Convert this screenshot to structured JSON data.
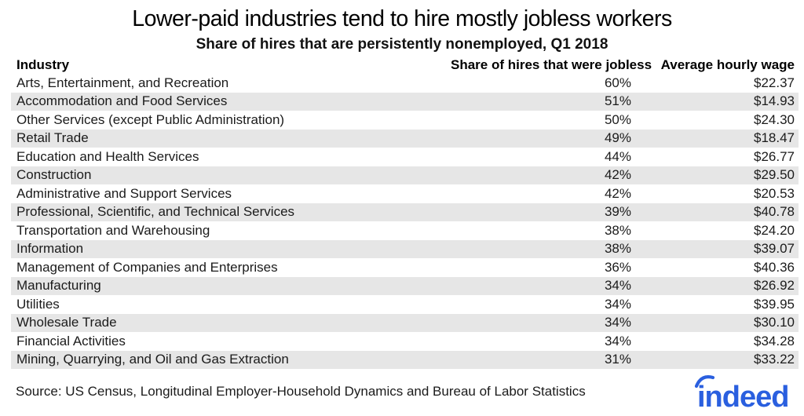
{
  "title": "Lower-paid industries tend to hire mostly jobless workers",
  "subtitle": "Share of hires that are persistently nonemployed, Q1 2018",
  "table": {
    "columns": [
      "Industry",
      "Share of hires that were jobless",
      "Average hourly wage"
    ],
    "rows": [
      {
        "industry": "Arts, Entertainment, and Recreation",
        "share": "60%",
        "wage": "$22.37"
      },
      {
        "industry": "Accommodation and Food Services",
        "share": "51%",
        "wage": "$14.93"
      },
      {
        "industry": "Other Services (except Public Administration)",
        "share": "50%",
        "wage": "$24.30"
      },
      {
        "industry": "Retail Trade",
        "share": "49%",
        "wage": "$18.47"
      },
      {
        "industry": "Education and Health Services",
        "share": "44%",
        "wage": "$26.77"
      },
      {
        "industry": "Construction",
        "share": "42%",
        "wage": "$29.50"
      },
      {
        "industry": "Administrative and Support Services",
        "share": "42%",
        "wage": "$20.53"
      },
      {
        "industry": "Professional, Scientific, and Technical Services",
        "share": "39%",
        "wage": "$40.78"
      },
      {
        "industry": "Transportation and Warehousing",
        "share": "38%",
        "wage": "$24.20"
      },
      {
        "industry": "Information",
        "share": "38%",
        "wage": "$39.07"
      },
      {
        "industry": "Management of Companies and Enterprises",
        "share": "36%",
        "wage": "$40.36"
      },
      {
        "industry": "Manufacturing",
        "share": "34%",
        "wage": "$26.92"
      },
      {
        "industry": "Utilities",
        "share": "34%",
        "wage": "$39.95"
      },
      {
        "industry": "Wholesale Trade",
        "share": "34%",
        "wage": "$30.10"
      },
      {
        "industry": "Financial Activities",
        "share": "34%",
        "wage": "$34.28"
      },
      {
        "industry": "Mining, Quarrying, and Oil and Gas Extraction",
        "share": "31%",
        "wage": "$33.22"
      }
    ]
  },
  "source": "Source: US Census, Longitudinal Employer-Household Dynamics and Bureau of Labor Statistics",
  "branding": {
    "logo_text": "indeed"
  },
  "colors": {
    "row_stripe": "#e6e6e6",
    "brand_blue": "#2a5fdf",
    "text": "#1b1b1b"
  },
  "chart_data": {
    "type": "table",
    "title": "Lower-paid industries tend to hire mostly jobless workers",
    "subtitle": "Share of hires that are persistently nonemployed, Q1 2018",
    "columns": [
      "Industry",
      "Share of hires that were jobless",
      "Average hourly wage"
    ],
    "categories": [
      "Arts, Entertainment, and Recreation",
      "Accommodation and Food Services",
      "Other Services (except Public Administration)",
      "Retail Trade",
      "Education and Health Services",
      "Construction",
      "Administrative and Support Services",
      "Professional, Scientific, and Technical Services",
      "Transportation and Warehousing",
      "Information",
      "Management of Companies and Enterprises",
      "Manufacturing",
      "Utilities",
      "Wholesale Trade",
      "Financial Activities",
      "Mining, Quarrying, and Oil and Gas Extraction"
    ],
    "series": [
      {
        "name": "Share of hires that were jobless",
        "unit": "percent",
        "values": [
          60,
          51,
          50,
          49,
          44,
          42,
          42,
          39,
          38,
          38,
          36,
          34,
          34,
          34,
          34,
          31
        ]
      },
      {
        "name": "Average hourly wage",
        "unit": "USD",
        "values": [
          22.37,
          14.93,
          24.3,
          18.47,
          26.77,
          29.5,
          20.53,
          40.78,
          24.2,
          39.07,
          40.36,
          26.92,
          39.95,
          30.1,
          34.28,
          33.22
        ]
      }
    ],
    "layout": {
      "striped_rows": true,
      "stripe_color": "#e6e6e6",
      "source_note": "Source: US Census, Longitudinal Employer-Household Dynamics and Bureau of Labor Statistics"
    }
  }
}
